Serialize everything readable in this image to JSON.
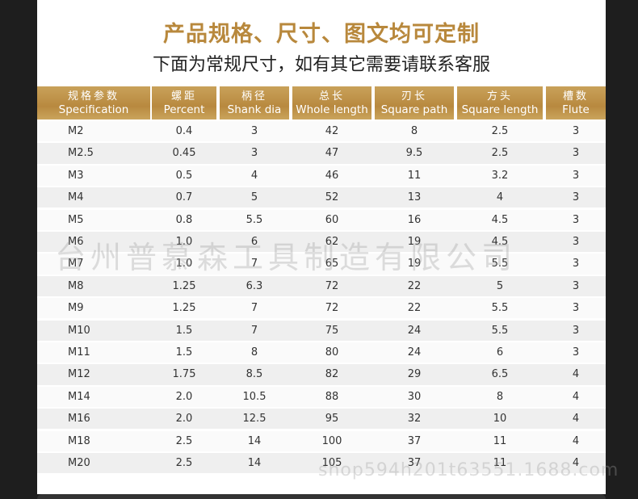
{
  "header": {
    "title": "产品规格、尺寸、图文均可定制",
    "subtitle": "下面为常规尺寸，如有其它需要请联系客服"
  },
  "table": {
    "columns": [
      {
        "cn": "规格参数",
        "en": "Specification"
      },
      {
        "cn": "螺距",
        "en": "Percent"
      },
      {
        "cn": "柄径",
        "en": "Shank dia"
      },
      {
        "cn": "总长",
        "en": "Whole length"
      },
      {
        "cn": "刃长",
        "en": "Square path"
      },
      {
        "cn": "方头",
        "en": "Square length"
      },
      {
        "cn": "槽数",
        "en": "Flute"
      }
    ],
    "rows": [
      [
        "M2",
        "0.4",
        "3",
        "42",
        "8",
        "2.5",
        "3"
      ],
      [
        "M2.5",
        "0.45",
        "3",
        "47",
        "9.5",
        "2.5",
        "3"
      ],
      [
        "M3",
        "0.5",
        "4",
        "46",
        "11",
        "3.2",
        "3"
      ],
      [
        "M4",
        "0.7",
        "5",
        "52",
        "13",
        "4",
        "3"
      ],
      [
        "M5",
        "0.8",
        "5.5",
        "60",
        "16",
        "4.5",
        "3"
      ],
      [
        "M6",
        "1.0",
        "6",
        "62",
        "19",
        "4.5",
        "3"
      ],
      [
        "M7",
        "1.0",
        "7",
        "65",
        "19",
        "5.5",
        "3"
      ],
      [
        "M8",
        "1.25",
        "6.3",
        "72",
        "22",
        "5",
        "3"
      ],
      [
        "M9",
        "1.25",
        "7",
        "72",
        "22",
        "5.5",
        "3"
      ],
      [
        "M10",
        "1.5",
        "7",
        "75",
        "24",
        "5.5",
        "3"
      ],
      [
        "M11",
        "1.5",
        "8",
        "80",
        "24",
        "6",
        "3"
      ],
      [
        "M12",
        "1.75",
        "8.5",
        "82",
        "29",
        "6.5",
        "4"
      ],
      [
        "M14",
        "2.0",
        "10.5",
        "88",
        "30",
        "8",
        "4"
      ],
      [
        "M16",
        "2.0",
        "12.5",
        "95",
        "32",
        "10",
        "4"
      ],
      [
        "M18",
        "2.5",
        "14",
        "100",
        "37",
        "11",
        "4"
      ],
      [
        "M20",
        "2.5",
        "14",
        "105",
        "37",
        "11",
        "4"
      ]
    ]
  },
  "watermarks": [
    "台州普慕森工具制造有限公司",
    "shop594h201t63551.1688.com"
  ]
}
